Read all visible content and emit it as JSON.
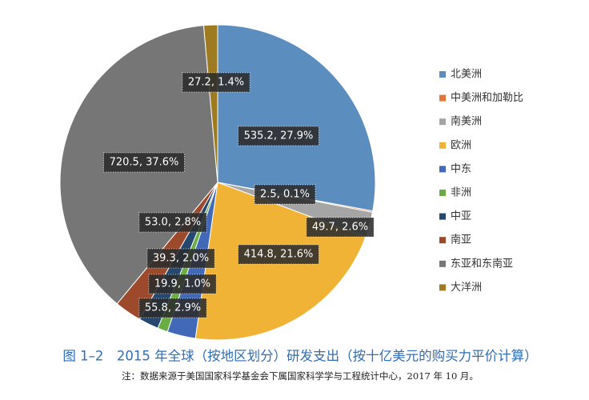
{
  "chart_data": {
    "type": "pie",
    "title": "图 1–2　2015 年全球（按地区划分）研发支出（按十亿美元的购买力平价计算）",
    "note": "注：数据来源于美国国家科学基金会下属国家科学学与工程统计中心，2017 年 10 月。",
    "categories": [
      "北美洲",
      "中美洲和加勒比",
      "南美洲",
      "欧洲",
      "中东",
      "非洲",
      "中亚",
      "南亚",
      "东亚和东南亚",
      "大洋洲"
    ],
    "values": [
      535.2,
      2.5,
      49.7,
      414.8,
      55.8,
      19.9,
      39.3,
      53.0,
      720.5,
      27.2
    ],
    "value_labels": [
      "535.2, 27.9%",
      "2.5, 0.1%",
      "49.7, 2.6%",
      "414.8, 21.6%",
      "55.8, 2.9%",
      "19.9, 1.0%",
      "39.3, 2.0%",
      "53.0, 2.8%",
      "720.5, 37.6%",
      "27.2, 1.4%"
    ],
    "colors": [
      "#5b8dbf",
      "#e5733a",
      "#a5a5a5",
      "#f0b336",
      "#4169b8",
      "#6aad45",
      "#26486e",
      "#9c4a2b",
      "#767676",
      "#9e7a20"
    ]
  }
}
